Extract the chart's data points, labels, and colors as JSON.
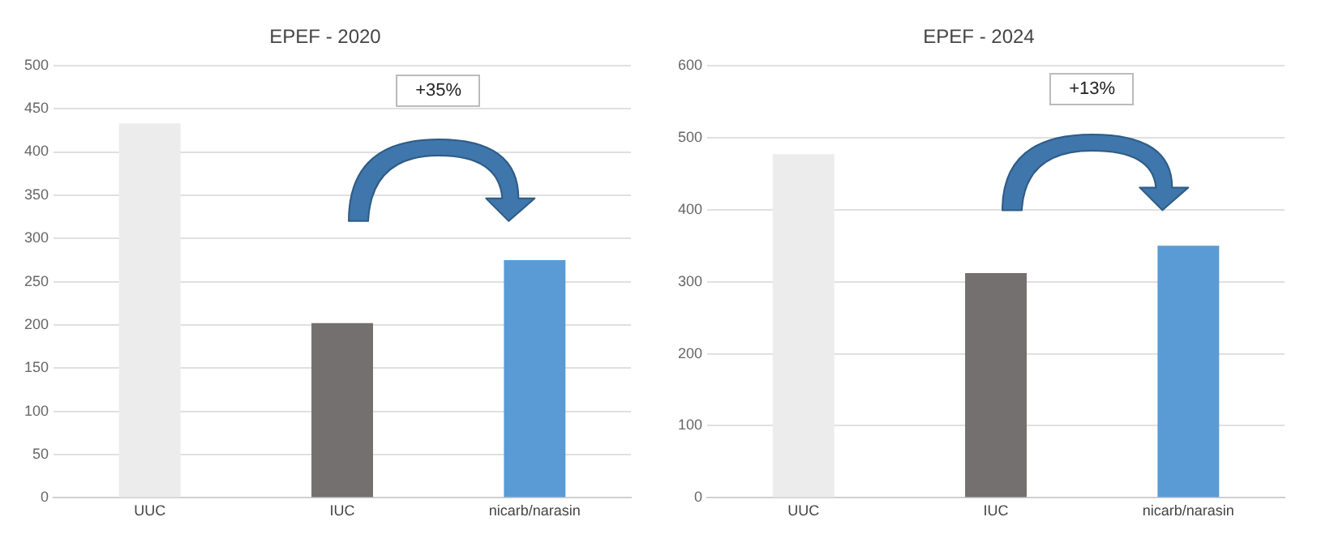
{
  "chart_data": [
    {
      "type": "bar",
      "title": "EPEF - 2020",
      "categories": [
        "UUC",
        "IUC",
        "nicarb/narasin"
      ],
      "values": [
        433,
        202,
        275
      ],
      "colors": [
        "#ececec",
        "#757070",
        "#5b9bd5"
      ],
      "ylim": [
        0,
        500
      ],
      "yticks": [
        0,
        50,
        100,
        150,
        200,
        250,
        300,
        350,
        400,
        450,
        500
      ],
      "grid": "y",
      "legend": false,
      "annotations": [
        "+35%"
      ]
    },
    {
      "type": "bar",
      "title": "EPEF - 2024",
      "categories": [
        "UUC",
        "IUC",
        "nicarb/narasin"
      ],
      "values": [
        477,
        312,
        350
      ],
      "colors": [
        "#ececec",
        "#757070",
        "#5b9bd5"
      ],
      "ylim": [
        0,
        600
      ],
      "yticks": [
        0,
        100,
        200,
        300,
        400,
        500,
        600
      ],
      "grid": "y",
      "legend": false,
      "annotations": [
        "+13%"
      ]
    }
  ]
}
